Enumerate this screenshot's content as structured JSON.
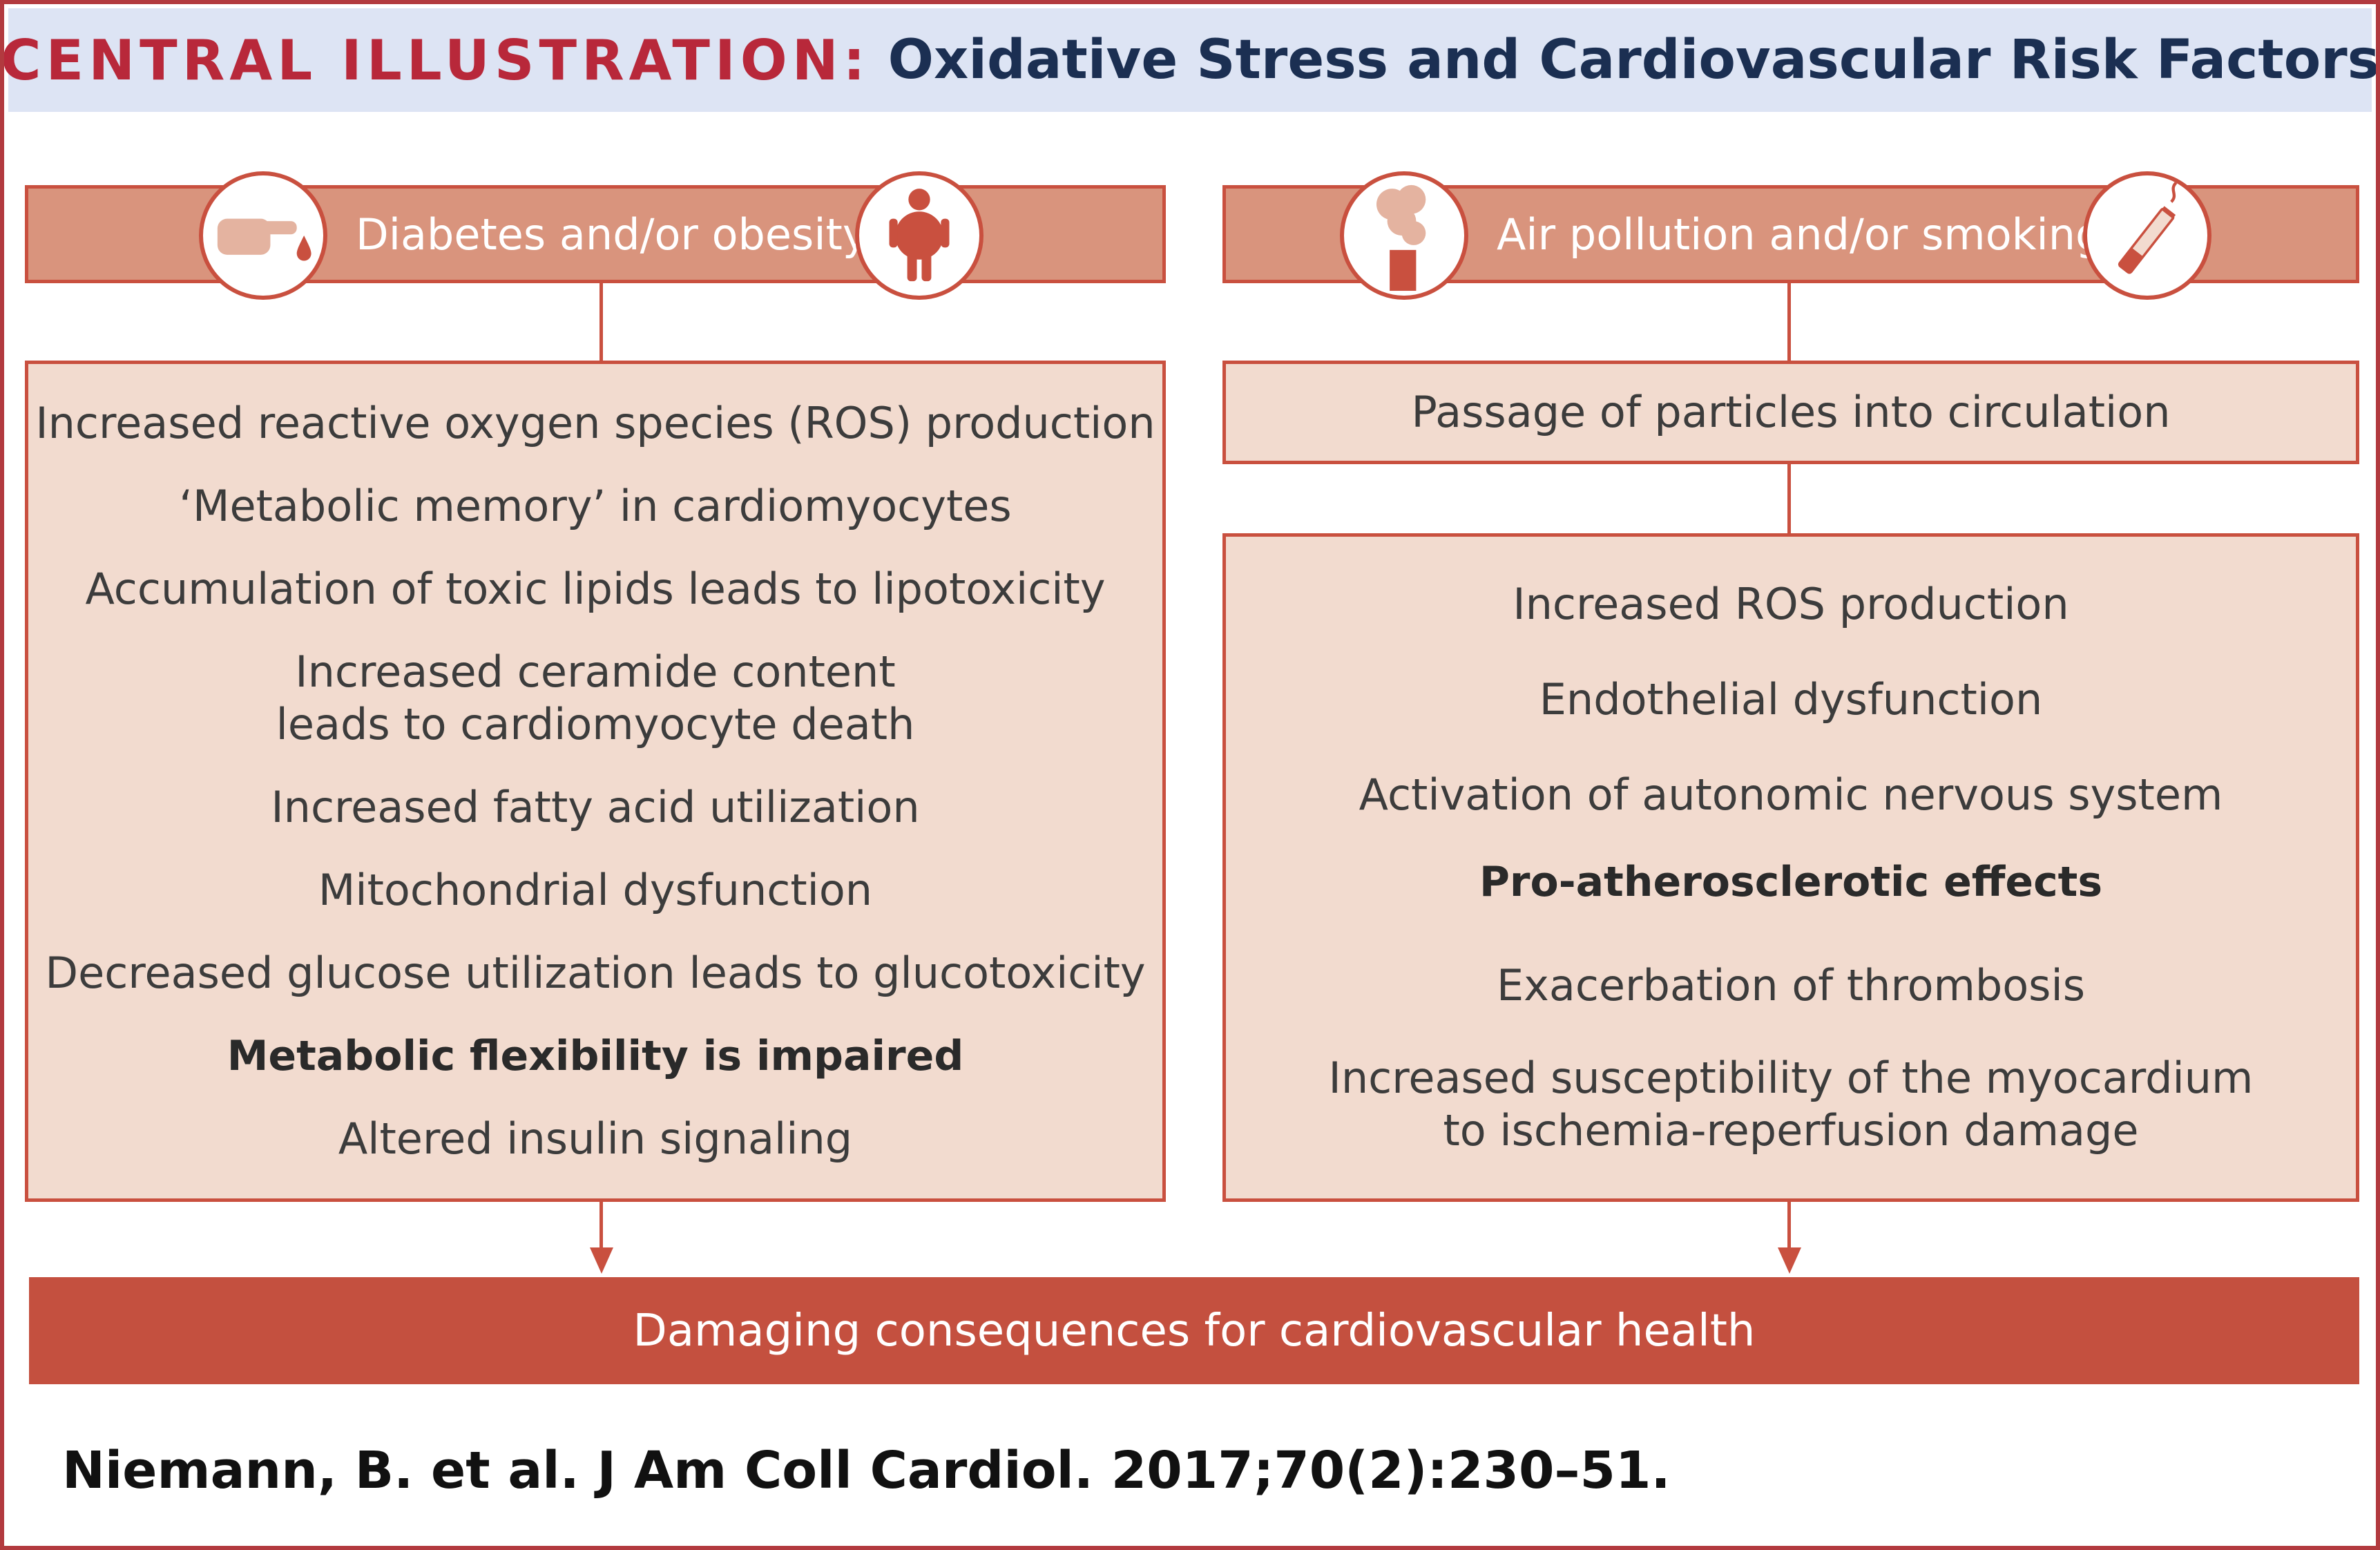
{
  "title": {
    "prefix": "CENTRAL ILLUSTRATION:",
    "main": "Oxidative Stress and Cardiovascular Risk Factors"
  },
  "left": {
    "header": "Diabetes and/or obesity",
    "icons": [
      "finger-blood-drop-icon",
      "obese-person-icon"
    ],
    "items": [
      {
        "text": "Increased reactive oxygen species (ROS) production",
        "bold": false
      },
      {
        "text": "‘Metabolic memory’ in cardiomyocytes",
        "bold": false
      },
      {
        "text": "Accumulation of toxic lipids leads to lipotoxicity",
        "bold": false
      },
      {
        "text": "Increased ceramide content\nleads to cardiomyocyte death",
        "bold": false
      },
      {
        "text": "Increased fatty acid utilization",
        "bold": false
      },
      {
        "text": "Mitochondrial dysfunction",
        "bold": false
      },
      {
        "text": "Decreased glucose utilization leads to glucotoxicity",
        "bold": false
      },
      {
        "text": "Metabolic flexibility is impaired",
        "bold": true
      },
      {
        "text": "Altered insulin signaling",
        "bold": false
      }
    ]
  },
  "right": {
    "header": "Air pollution and/or smoking",
    "icons": [
      "smokestack-icon",
      "cigarette-icon"
    ],
    "passage": "Passage of particles into circulation",
    "items": [
      {
        "text": "Increased ROS production",
        "bold": false
      },
      {
        "text": "Endothelial dysfunction",
        "bold": false
      },
      {
        "text": "Activation of autonomic nervous system",
        "bold": false
      },
      {
        "text": "Pro-atherosclerotic effects",
        "bold": true
      },
      {
        "text": "Exacerbation of thrombosis",
        "bold": false
      },
      {
        "text": "Increased susceptibility of the myocardium\nto ischemia-reperfusion damage",
        "bold": false
      }
    ]
  },
  "outcome": "Damaging consequences for cardiovascular health",
  "citation": "Niemann, B. et al. J Am Coll Cardiol. 2017;70(2):230–51.",
  "colors": {
    "accent_red": "#c4503f",
    "header_fill": "#d9947d",
    "box_fill": "#f2dbcf",
    "title_band": "#dde4f4",
    "title_prefix": "#b8283a",
    "title_main": "#1b2f52"
  }
}
